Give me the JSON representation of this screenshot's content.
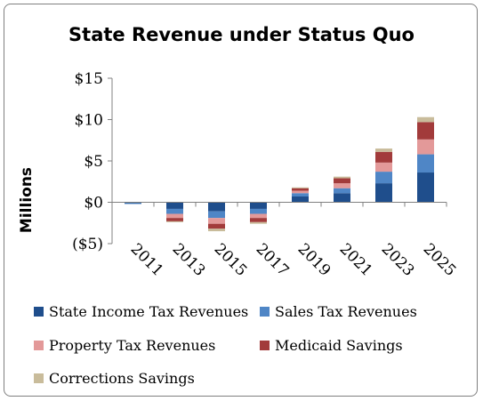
{
  "chart_data": {
    "type": "bar",
    "stacked": true,
    "title": "State Revenue under Status Quo",
    "xlabel": "",
    "ylabel": "Millions",
    "ylim": [
      -5,
      15
    ],
    "yticks": [
      15,
      10,
      5,
      0,
      -5
    ],
    "ytick_labels": [
      "$15",
      "$10",
      "$5",
      "$0",
      "($5)"
    ],
    "categories": [
      "2011",
      "2013",
      "2015",
      "2017",
      "2019",
      "2021",
      "2023",
      "2025"
    ],
    "grid": false,
    "legend_position": "bottom",
    "series": [
      {
        "name": "State Income Tax Revenues",
        "color": "#1f4e8c",
        "values": [
          -0.1,
          -0.8,
          -1.1,
          -0.8,
          0.7,
          1.1,
          2.3,
          3.6
        ]
      },
      {
        "name": "Sales Tax Revenues",
        "color": "#4f86c6",
        "values": [
          -0.05,
          -0.6,
          -0.8,
          -0.6,
          0.4,
          0.6,
          1.4,
          2.2
        ]
      },
      {
        "name": "Property Tax Revenues",
        "color": "#e39999",
        "values": [
          0,
          -0.5,
          -0.7,
          -0.5,
          0.3,
          0.6,
          1.1,
          1.8
        ]
      },
      {
        "name": "Medicaid Savings",
        "color": "#a23b3b",
        "values": [
          0,
          -0.4,
          -0.6,
          -0.5,
          0.3,
          0.6,
          1.3,
          2.1
        ]
      },
      {
        "name": "Corrections Savings",
        "color": "#c9bc9b",
        "values": [
          0,
          -0.1,
          -0.3,
          -0.2,
          0.1,
          0.2,
          0.4,
          0.6
        ]
      }
    ]
  }
}
